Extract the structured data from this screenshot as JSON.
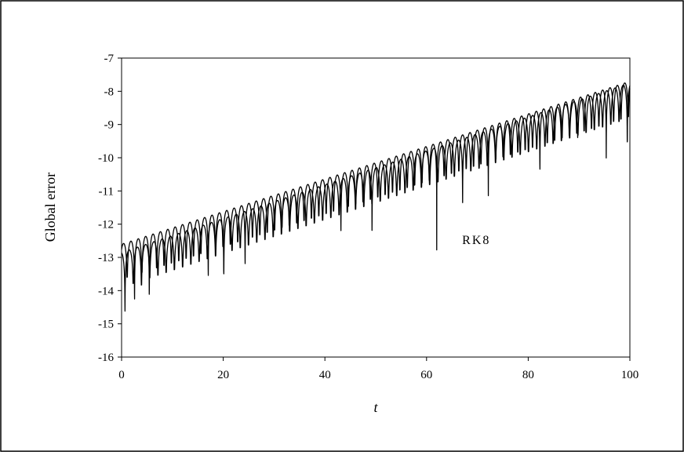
{
  "chart_data": {
    "type": "line",
    "title": "",
    "xlabel": "t",
    "ylabel": "Global error",
    "xlim": [
      0,
      100
    ],
    "ylim": [
      -16,
      -7
    ],
    "xticks": [
      0,
      20,
      40,
      60,
      80,
      100
    ],
    "yticks": [
      -16,
      -15,
      -14,
      -13,
      -12,
      -11,
      -10,
      -9,
      -8,
      -7
    ],
    "grid": false,
    "legend": "none",
    "annotation": {
      "text": "RK8",
      "x": 67,
      "y": -12.6
    },
    "series": [
      {
        "trend": {
          "start": [
            0,
            -12.6
          ],
          "end": [
            100,
            -7.7
          ]
        },
        "period": 1.45,
        "phase": 0.35,
        "dips": [
          [
            2.2,
            -15.5
          ],
          [
            6,
            -14.75
          ],
          [
            16.5,
            -13.8
          ],
          [
            24.5,
            -14.05
          ],
          [
            43,
            -12.2
          ],
          [
            61.5,
            -12.8
          ],
          [
            72,
            -11.5
          ],
          [
            82,
            -10.95
          ],
          [
            96,
            -10.5
          ]
        ]
      },
      {
        "trend": {
          "start": [
            0,
            -12.85
          ],
          "end": [
            100,
            -7.75
          ]
        },
        "period": 1.62,
        "phase": 0.95,
        "dips": [
          [
            1,
            -14.6
          ],
          [
            4.5,
            -13.8
          ],
          [
            20,
            -13.5
          ],
          [
            29,
            -13.45
          ],
          [
            50,
            -12.15
          ],
          [
            67.5,
            -11.7
          ],
          [
            89,
            -10.8
          ],
          [
            100,
            -9.6
          ]
        ]
      }
    ]
  }
}
